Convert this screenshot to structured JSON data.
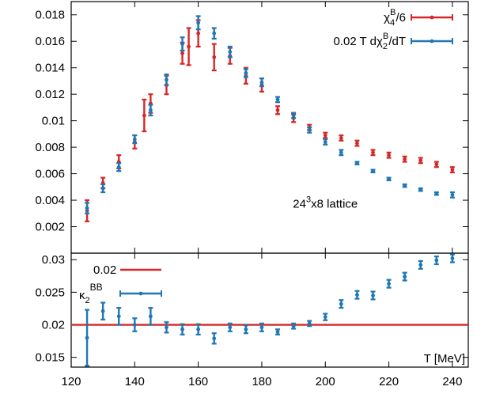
{
  "colors": {
    "red": "#d62728",
    "blue": "#1f77b4",
    "frame": "#000000",
    "reference_line": "#d62728"
  },
  "chart_data": [
    {
      "type": "scatter",
      "panel": "top",
      "xlim": [
        120,
        245
      ],
      "ylim": [
        0.0,
        0.019
      ],
      "grid": false,
      "legend_position": "top-right",
      "yticks": [
        "0.002",
        "0.004",
        "0.006",
        "0.008",
        "0.01",
        "0.012",
        "0.014",
        "0.016",
        "0.018"
      ],
      "ytick_values": [
        0.002,
        0.004,
        0.006,
        0.008,
        0.01,
        0.012,
        0.014,
        0.016,
        0.018
      ],
      "annotation": {
        "base": "24",
        "sup": "3",
        "rest": "x8 lattice",
        "x": 200,
        "y": 0.00345
      },
      "series": [
        {
          "name_parts": {
            "main": "χ",
            "sub": "4",
            "sup": "B",
            "rest": "/6"
          },
          "color_key": "red",
          "x": [
            125,
            130,
            135,
            140,
            143,
            145,
            150,
            155,
            157,
            160,
            165,
            170,
            175,
            180,
            185,
            190,
            195,
            200,
            205,
            210,
            215,
            220,
            225,
            230,
            235,
            240
          ],
          "y": [
            0.0032,
            0.0053,
            0.0069,
            0.0084,
            0.0104,
            0.0113,
            0.0127,
            0.0151,
            0.0156,
            0.0166,
            0.0148,
            0.0149,
            0.0134,
            0.0127,
            0.0108,
            0.0102,
            0.0095,
            0.0089,
            0.0087,
            0.0083,
            0.0076,
            0.0074,
            0.0071,
            0.007,
            0.0067,
            0.0063
          ],
          "err": [
            0.0008,
            0.0004,
            0.0005,
            0.0005,
            0.0012,
            0.0007,
            0.0007,
            0.0008,
            0.0014,
            0.001,
            0.001,
            0.0006,
            0.0006,
            0.0005,
            0.0003,
            0.0003,
            0.0002,
            0.0002,
            0.0002,
            0.0002,
            0.0002,
            0.0002,
            0.0002,
            0.0002,
            0.0002,
            0.0002
          ]
        },
        {
          "name_parts": {
            "pre": "0.02 T d",
            "main": "χ",
            "sub": "2",
            "sup": "B",
            "rest": "/dT"
          },
          "color_key": "blue",
          "x": [
            125,
            130,
            135,
            140,
            145,
            150,
            155,
            160,
            165,
            170,
            175,
            180,
            185,
            190,
            195,
            200,
            205,
            210,
            215,
            220,
            225,
            230,
            235,
            240
          ],
          "y": [
            0.0034,
            0.0049,
            0.0065,
            0.0086,
            0.0108,
            0.0131,
            0.0158,
            0.0174,
            0.0166,
            0.0152,
            0.0136,
            0.0129,
            0.0116,
            0.0104,
            0.0093,
            0.0084,
            0.0076,
            0.0068,
            0.0062,
            0.0056,
            0.0051,
            0.0048,
            0.0045,
            0.0044
          ],
          "err": [
            0.0004,
            0.0003,
            0.0003,
            0.0003,
            0.0004,
            0.0004,
            0.0005,
            0.0005,
            0.0004,
            0.0004,
            0.0003,
            0.0003,
            0.0002,
            0.0002,
            0.0002,
            0.0002,
            0.0002,
            0.0001,
            0.0001,
            0.0001,
            0.0001,
            0.0001,
            0.0001,
            0.0002
          ]
        }
      ]
    },
    {
      "type": "scatter",
      "panel": "bottom",
      "xlim": [
        120,
        245
      ],
      "ylim": [
        0.0135,
        0.031
      ],
      "grid": false,
      "xlabel": "T [MeV]",
      "xticks": [
        "120",
        "140",
        "160",
        "180",
        "200",
        "220",
        "240"
      ],
      "xtick_values": [
        120,
        140,
        160,
        180,
        200,
        220,
        240
      ],
      "yticks": [
        "0.015",
        "0.02",
        "0.025",
        "0.03"
      ],
      "ytick_values": [
        0.015,
        0.02,
        0.025,
        0.03
      ],
      "legend_position": "top-left",
      "reference_line": {
        "name": "0.02",
        "y": 0.02,
        "color_key": "red"
      },
      "series": [
        {
          "name_parts": {
            "main": "κ",
            "sub": "2",
            "sup": "BB"
          },
          "color_key": "blue",
          "x": [
            125,
            130,
            135,
            140,
            145,
            150,
            155,
            160,
            165,
            170,
            175,
            180,
            185,
            190,
            195,
            200,
            205,
            210,
            215,
            220,
            225,
            230,
            235,
            240
          ],
          "y": [
            0.018,
            0.0221,
            0.0213,
            0.02,
            0.0213,
            0.0196,
            0.0193,
            0.0193,
            0.0179,
            0.0196,
            0.0193,
            0.0196,
            0.0189,
            0.0198,
            0.0202,
            0.0212,
            0.0232,
            0.0246,
            0.0245,
            0.0263,
            0.0274,
            0.0292,
            0.0299,
            0.0302
          ],
          "err": [
            0.0043,
            0.0013,
            0.0013,
            0.001,
            0.0013,
            0.0008,
            0.0008,
            0.0008,
            0.0008,
            0.0006,
            0.0006,
            0.0006,
            0.0004,
            0.0004,
            0.0004,
            0.0005,
            0.0006,
            0.0006,
            0.0006,
            0.0006,
            0.0006,
            0.0006,
            0.0006,
            0.0006
          ]
        }
      ]
    }
  ]
}
